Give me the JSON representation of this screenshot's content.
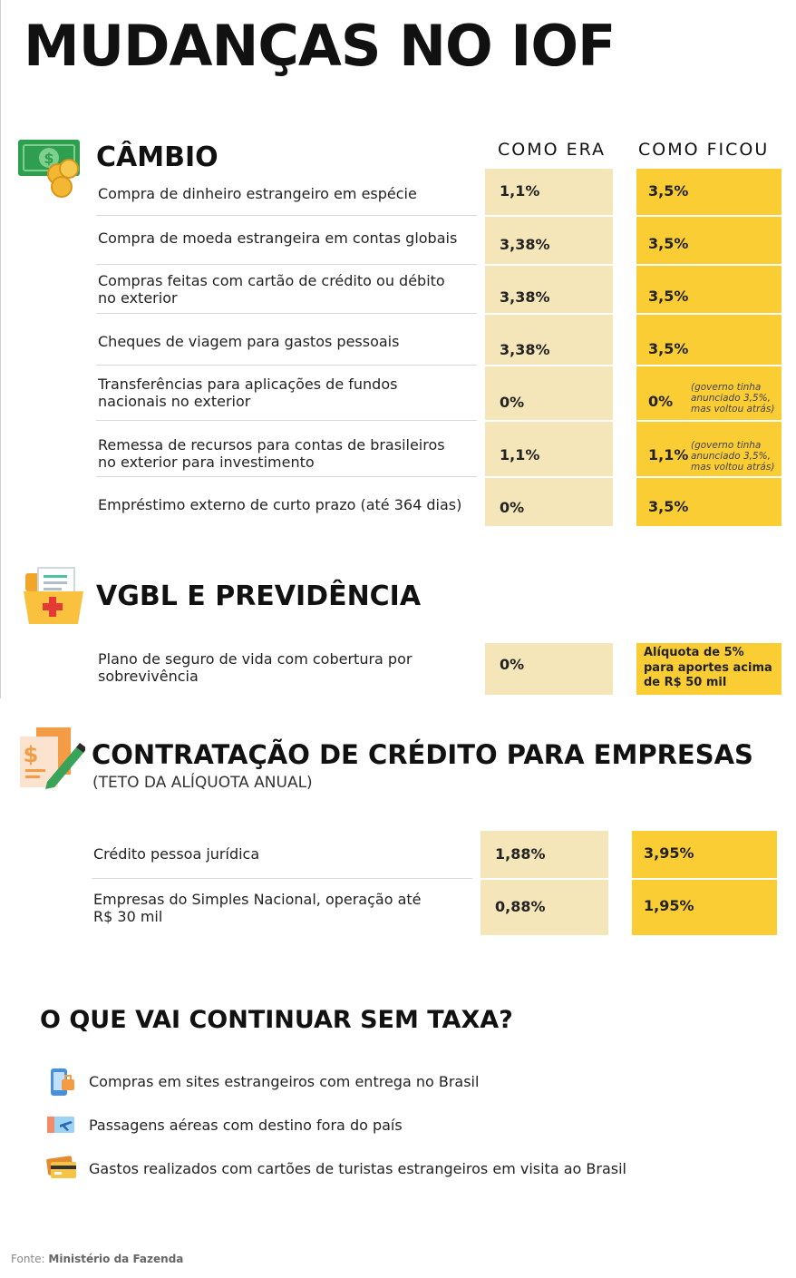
{
  "title": "MUDANÇAS NO IOF",
  "columns": {
    "before": "COMO ERA",
    "after": "COMO FICOU"
  },
  "cambio": {
    "title": "CÂMBIO",
    "rows": [
      {
        "label": "Compra de dinheiro estrangeiro em espécie",
        "before": "1,1%",
        "after": "3,5%",
        "note": ""
      },
      {
        "label": "Compra de moeda estrangeira em contas globais",
        "before": "3,38%",
        "after": "3,5%",
        "note": ""
      },
      {
        "label": "Compras feitas com cartão de crédito ou débito no exterior",
        "before": "3,38%",
        "after": "3,5%",
        "note": ""
      },
      {
        "label": "Cheques de viagem para gastos pessoais",
        "before": "3,38%",
        "after": "3,5%",
        "note": ""
      },
      {
        "label": "Transferências para aplicações de fundos nacionais no exterior",
        "before": "0%",
        "after": "0%",
        "note": "(governo tinha anunciado 3,5%, mas voltou atrás)"
      },
      {
        "label": "Remessa de recursos para contas de brasileiros no exterior para investimento",
        "before": "1,1%",
        "after": "1,1%",
        "note": "(governo tinha anunciado 3,5%, mas voltou atrás)"
      },
      {
        "label": "Empréstimo externo de curto prazo (até 364 dias)",
        "before": "0%",
        "after": "3,5%",
        "note": ""
      }
    ]
  },
  "vgbl": {
    "title": "VGBL E PREVIDÊNCIA",
    "rows": [
      {
        "label": "Plano de seguro de vida com cobertura por sobrevivência",
        "before": "0%",
        "after": "Alíquota de 5% para aportes acima de R$ 50 mil"
      }
    ]
  },
  "credito": {
    "title": "CONTRATAÇÃO DE CRÉDITO PARA EMPRESAS",
    "subtitle": "(TETO DA ALÍQUOTA ANUAL)",
    "rows": [
      {
        "label": "Crédito pessoa jurídica",
        "before": "1,88%",
        "after": "3,95%"
      },
      {
        "label": "Empresas do Simples Nacional, operação até R$ 30 mil",
        "before": "0,88%",
        "after": "1,95%"
      }
    ]
  },
  "sem_taxa": {
    "title": "O QUE VAI CONTINUAR SEM TAXA?",
    "items": [
      {
        "text": "Compras em sites estrangeiros com entrega no Brasil",
        "icon": "shopping-phone-icon"
      },
      {
        "text": "Passagens aéreas com destino fora do país",
        "icon": "airplane-ticket-icon"
      },
      {
        "text": "Gastos realizados com cartões de turistas estrangeiros em visita ao Brasil",
        "icon": "credit-card-icon"
      }
    ]
  },
  "source": {
    "label": "Fonte:",
    "value": "Ministério da Fazenda"
  },
  "colors": {
    "before_bg": "#f5e6b9",
    "after_bg": "#fbcd34",
    "money_green": "#2e9e4f",
    "coin_gold": "#f2b733"
  }
}
